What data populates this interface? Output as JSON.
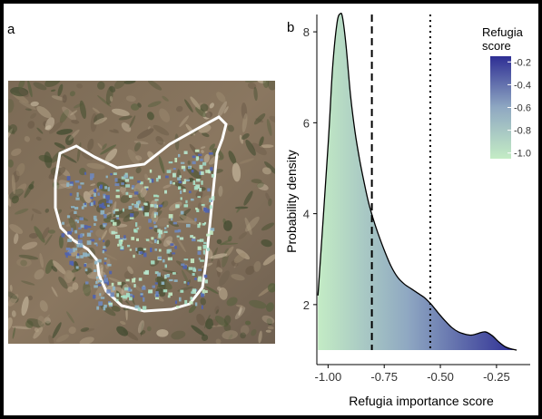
{
  "panels": {
    "a_label": "a",
    "b_label": "b"
  },
  "map": {
    "description_icon": "satellite-terrain-map",
    "boundary_color": "#ffffff"
  },
  "chart_data": {
    "type": "area",
    "xlabel": "Refugia importance score",
    "ylabel": "Probability density",
    "xlim": [
      -1.05,
      -0.1
    ],
    "ylim": [
      1.0,
      8.7
    ],
    "xticks": [
      -1.0,
      -0.75,
      -0.5,
      -0.25
    ],
    "xtick_labels": [
      "-1.00",
      "-0.75",
      "-0.50",
      "-0.25"
    ],
    "yticks": [
      2,
      4,
      6,
      8
    ],
    "ytick_labels": [
      "2",
      "4",
      "6",
      "8"
    ],
    "x": [
      -1.045,
      -1.0,
      -0.98,
      -0.96,
      -0.945,
      -0.935,
      -0.92,
      -0.9,
      -0.88,
      -0.86,
      -0.84,
      -0.82,
      -0.8,
      -0.78,
      -0.75,
      -0.72,
      -0.69,
      -0.66,
      -0.63,
      -0.6,
      -0.57,
      -0.54,
      -0.51,
      -0.48,
      -0.45,
      -0.42,
      -0.39,
      -0.36,
      -0.33,
      -0.3,
      -0.27,
      -0.24,
      -0.21,
      -0.18,
      -0.16
    ],
    "density": [
      2.2,
      5.5,
      7.2,
      8.2,
      8.4,
      8.3,
      7.7,
      6.6,
      5.8,
      5.2,
      4.7,
      4.25,
      3.9,
      3.6,
      3.2,
      2.85,
      2.6,
      2.45,
      2.35,
      2.25,
      2.15,
      2.0,
      1.82,
      1.65,
      1.5,
      1.4,
      1.35,
      1.33,
      1.37,
      1.4,
      1.32,
      1.18,
      1.07,
      1.02,
      1.0
    ],
    "vlines": [
      {
        "x": -0.805,
        "style": "dashed"
      },
      {
        "x": -0.545,
        "style": "dotted"
      }
    ],
    "legend": {
      "title_line1": "Refugia",
      "title_line2": "score",
      "ticks": [
        -0.2,
        -0.4,
        -0.6,
        -0.8,
        -1.0
      ],
      "tick_labels": [
        "-0.2",
        "-0.4",
        "-0.6",
        "-0.8",
        "-1.0"
      ],
      "range": [
        -1.05,
        -0.15
      ],
      "placement": "top-right"
    },
    "color_low": "#c4ecc5",
    "color_mid": "#8fa8c2",
    "color_high": "#2e2e94"
  }
}
